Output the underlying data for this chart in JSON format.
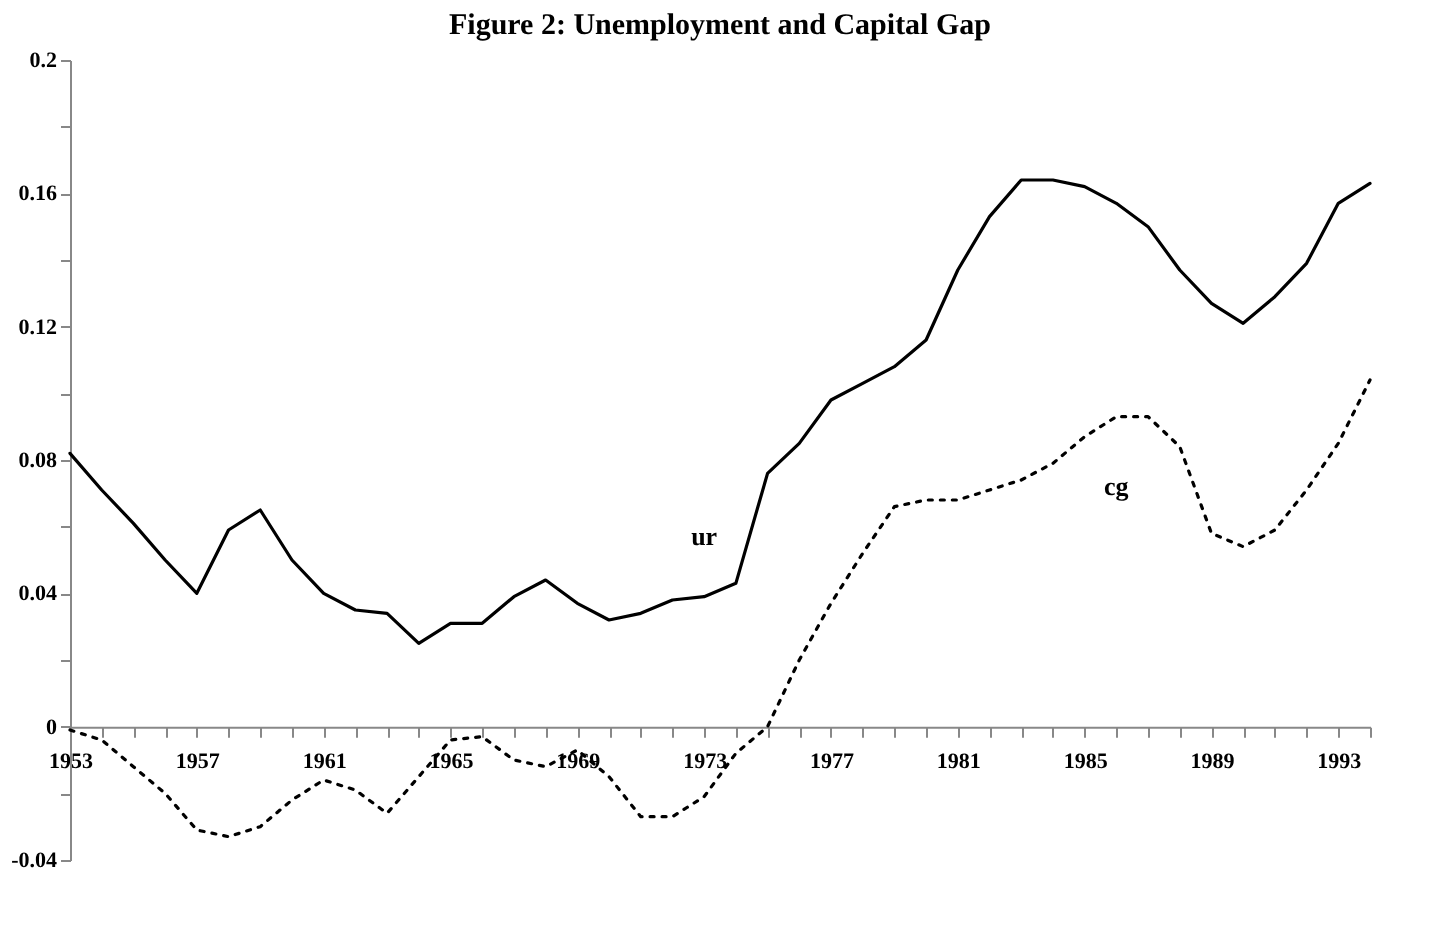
{
  "chart_data": {
    "type": "line",
    "title": "Figure 2: Unemployment and Capital Gap",
    "x": [
      1953,
      1954,
      1955,
      1956,
      1957,
      1958,
      1959,
      1960,
      1961,
      1962,
      1963,
      1964,
      1965,
      1966,
      1967,
      1968,
      1969,
      1970,
      1971,
      1972,
      1973,
      1974,
      1975,
      1976,
      1977,
      1978,
      1979,
      1980,
      1981,
      1982,
      1983,
      1984,
      1985,
      1986,
      1987,
      1988,
      1989,
      1990,
      1991,
      1992,
      1993,
      1994
    ],
    "series": [
      {
        "name": "ur",
        "color": "#000000",
        "line_style": "solid",
        "values": [
          0.082,
          0.071,
          0.061,
          0.05,
          0.04,
          0.059,
          0.065,
          0.05,
          0.04,
          0.035,
          0.034,
          0.025,
          0.031,
          0.031,
          0.039,
          0.044,
          0.037,
          0.032,
          0.034,
          0.038,
          0.039,
          0.043,
          0.076,
          0.085,
          0.098,
          0.103,
          0.108,
          0.116,
          0.137,
          0.153,
          0.164,
          0.164,
          0.162,
          0.157,
          0.15,
          0.137,
          0.127,
          0.121,
          0.129,
          0.139,
          0.157,
          0.163
        ]
      },
      {
        "name": "cg",
        "color": "#000000",
        "line_style": "dotted",
        "values": [
          -0.001,
          -0.004,
          -0.012,
          -0.02,
          -0.031,
          -0.033,
          -0.03,
          -0.022,
          -0.016,
          -0.019,
          -0.026,
          -0.015,
          -0.004,
          -0.003,
          -0.01,
          -0.012,
          -0.007,
          -0.015,
          -0.027,
          -0.027,
          -0.021,
          -0.008,
          0.0,
          0.02,
          0.037,
          0.052,
          0.066,
          0.068,
          0.068,
          0.071,
          0.074,
          0.079,
          0.087,
          0.093,
          0.093,
          0.084,
          0.058,
          0.054,
          0.059,
          0.071,
          0.085,
          0.104
        ]
      }
    ],
    "xlim": [
      1953,
      1994
    ],
    "xticks": [
      1953,
      {
        "value": 1954,
        "label": null
      },
      {
        "value": 1955,
        "label": null
      },
      {
        "value": 1956,
        "label": null
      },
      1957,
      {
        "value": 1958,
        "label": null
      },
      {
        "value": 1959,
        "label": null
      },
      {
        "value": 1960,
        "label": null
      },
      1961,
      {
        "value": 1962,
        "label": null
      },
      {
        "value": 1963,
        "label": null
      },
      {
        "value": 1964,
        "label": null
      },
      1965,
      {
        "value": 1966,
        "label": null
      },
      {
        "value": 1967,
        "label": null
      },
      {
        "value": 1968,
        "label": null
      },
      1969,
      {
        "value": 1970,
        "label": null
      },
      {
        "value": 1971,
        "label": null
      },
      {
        "value": 1972,
        "label": null
      },
      1973,
      {
        "value": 1974,
        "label": null
      },
      {
        "value": 1975,
        "label": null
      },
      {
        "value": 1976,
        "label": null
      },
      1977,
      {
        "value": 1978,
        "label": null
      },
      {
        "value": 1979,
        "label": null
      },
      {
        "value": 1980,
        "label": null
      },
      1981,
      {
        "value": 1982,
        "label": null
      },
      {
        "value": 1983,
        "label": null
      },
      {
        "value": 1984,
        "label": null
      },
      1985,
      {
        "value": 1986,
        "label": null
      },
      {
        "value": 1987,
        "label": null
      },
      {
        "value": 1988,
        "label": null
      },
      1989,
      {
        "value": 1990,
        "label": null
      },
      {
        "value": 1991,
        "label": null
      },
      {
        "value": 1992,
        "label": null
      },
      1993,
      {
        "value": 1994,
        "label": null
      }
    ],
    "ylim": [
      -0.04,
      0.2
    ],
    "yticks": [
      -0.04,
      {
        "value": -0.02,
        "label": null
      },
      0,
      {
        "value": 0.02,
        "label": null
      },
      0.04,
      {
        "value": 0.06,
        "label": null
      },
      0.08,
      {
        "value": 0.1,
        "label": null
      },
      0.12,
      {
        "value": 0.14,
        "label": null
      },
      0.16,
      {
        "value": 0.18,
        "label": null
      },
      0.2
    ],
    "grid": false,
    "legend": false
  }
}
